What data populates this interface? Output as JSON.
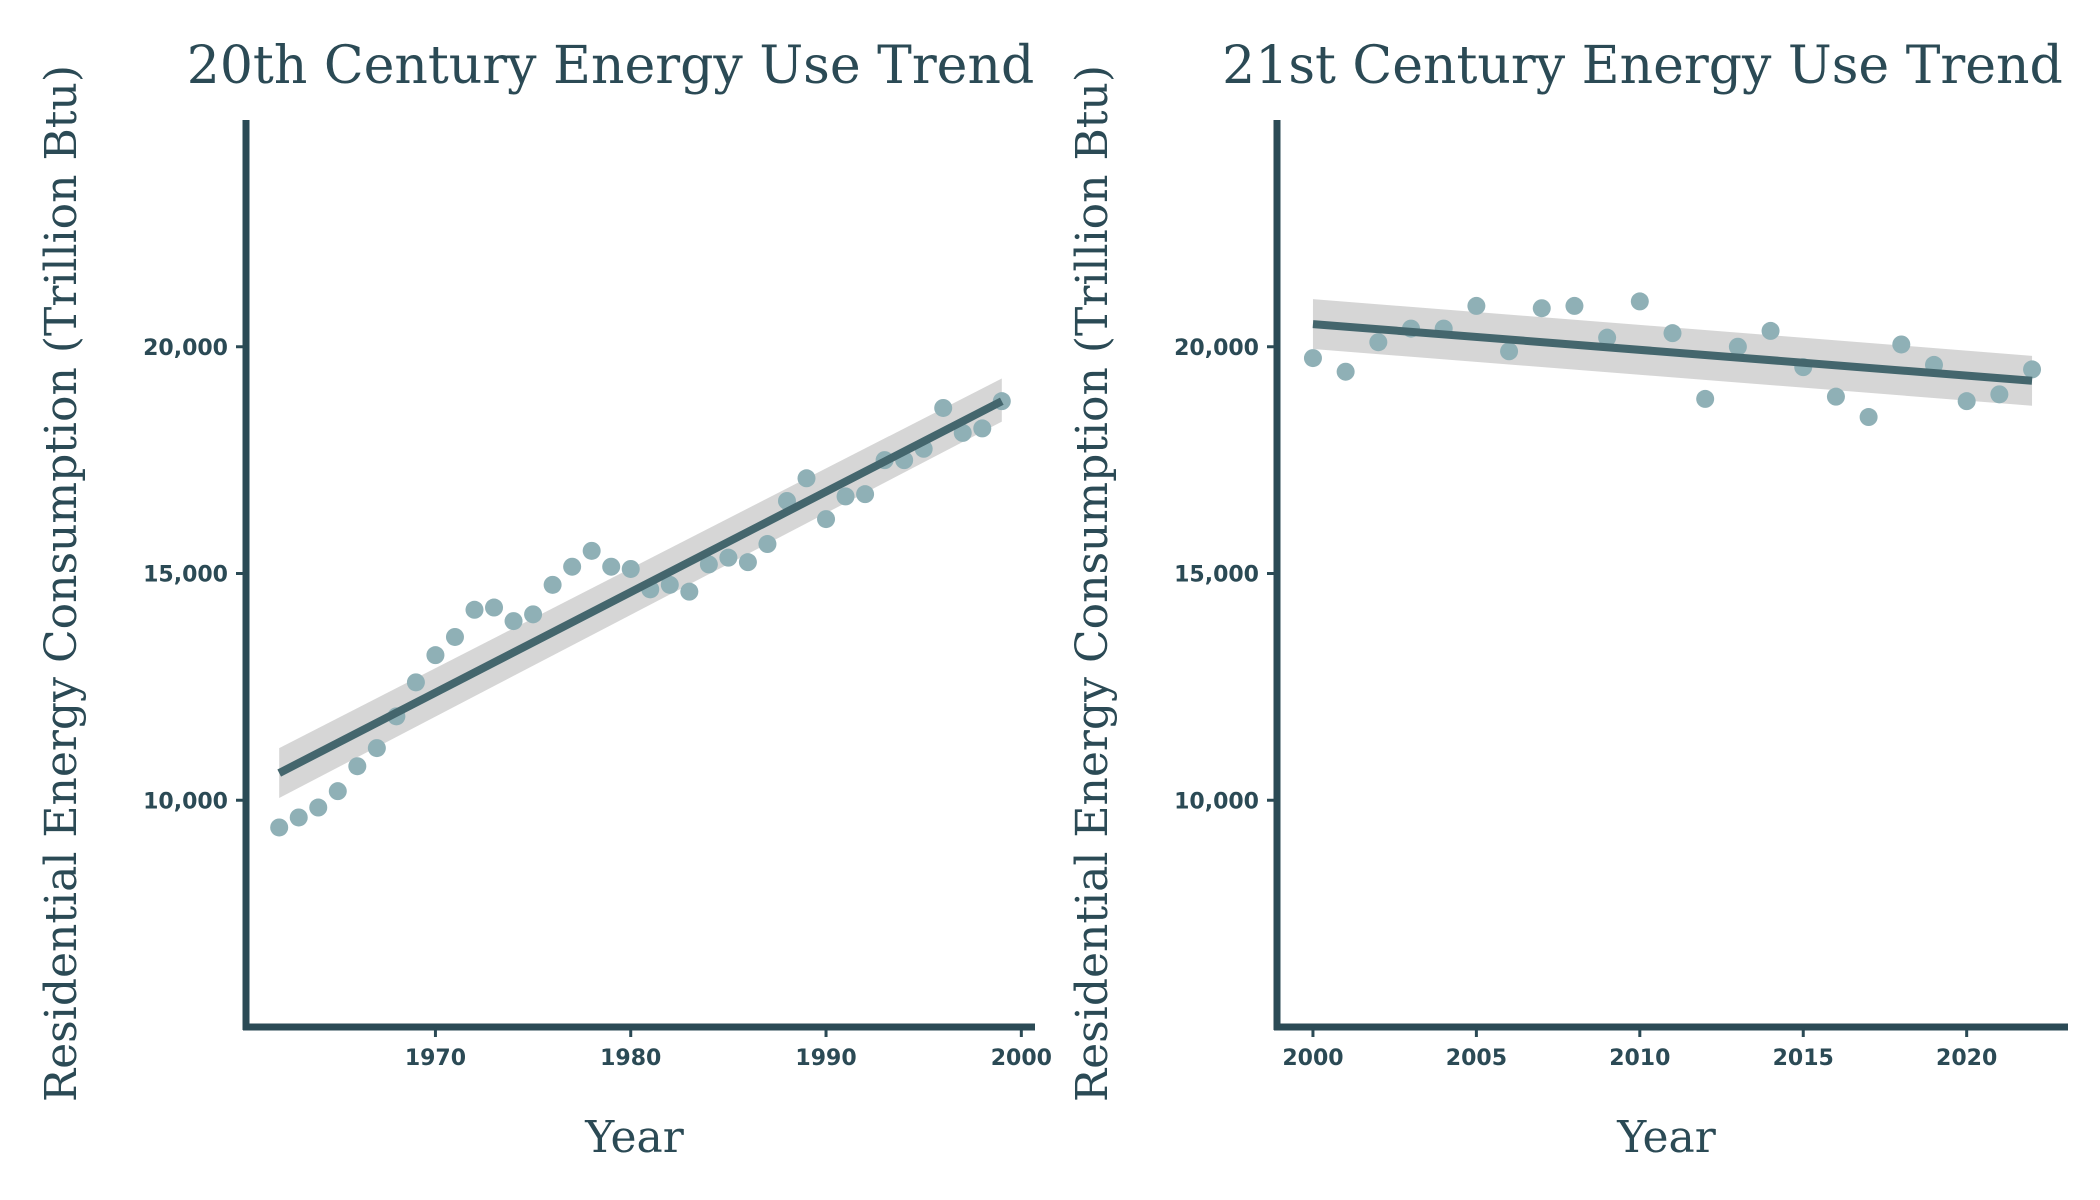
{
  "chart_data": [
    {
      "type": "scatter",
      "title": "20th Century Energy Use Trend",
      "xlabel": "Year",
      "ylabel": "Residential Energy Consumption (Trillion Btu)",
      "xlim": [
        1960.3,
        2000.7
      ],
      "ylim": [
        5000,
        25000
      ],
      "xticks": [
        1970,
        1980,
        1990,
        2000
      ],
      "xtick_labels": [
        "1970",
        "1980",
        "1990",
        "2000"
      ],
      "yticks": [
        10000,
        15000,
        20000
      ],
      "ytick_labels": [
        "10,000",
        "15,000",
        "20,000"
      ],
      "grid": false,
      "points": [
        {
          "x": 1962,
          "y": 9400
        },
        {
          "x": 1963,
          "y": 9620
        },
        {
          "x": 1964,
          "y": 9840
        },
        {
          "x": 1965,
          "y": 10200
        },
        {
          "x": 1966,
          "y": 10750
        },
        {
          "x": 1967,
          "y": 11150
        },
        {
          "x": 1968,
          "y": 11850
        },
        {
          "x": 1969,
          "y": 12600
        },
        {
          "x": 1970,
          "y": 13200
        },
        {
          "x": 1971,
          "y": 13600
        },
        {
          "x": 1972,
          "y": 14200
        },
        {
          "x": 1973,
          "y": 14250
        },
        {
          "x": 1974,
          "y": 13950
        },
        {
          "x": 1975,
          "y": 14100
        },
        {
          "x": 1976,
          "y": 14750
        },
        {
          "x": 1977,
          "y": 15150
        },
        {
          "x": 1978,
          "y": 15500
        },
        {
          "x": 1979,
          "y": 15150
        },
        {
          "x": 1980,
          "y": 15100
        },
        {
          "x": 1981,
          "y": 14650
        },
        {
          "x": 1982,
          "y": 14750
        },
        {
          "x": 1983,
          "y": 14600
        },
        {
          "x": 1984,
          "y": 15200
        },
        {
          "x": 1985,
          "y": 15350
        },
        {
          "x": 1986,
          "y": 15250
        },
        {
          "x": 1987,
          "y": 15650
        },
        {
          "x": 1988,
          "y": 16600
        },
        {
          "x": 1989,
          "y": 17100
        },
        {
          "x": 1990,
          "y": 16200
        },
        {
          "x": 1991,
          "y": 16700
        },
        {
          "x": 1992,
          "y": 16750
        },
        {
          "x": 1993,
          "y": 17500
        },
        {
          "x": 1994,
          "y": 17500
        },
        {
          "x": 1995,
          "y": 17750
        },
        {
          "x": 1996,
          "y": 18650
        },
        {
          "x": 1997,
          "y": 18100
        },
        {
          "x": 1998,
          "y": 18200
        },
        {
          "x": 1999,
          "y": 18800
        }
      ],
      "trendline": {
        "x": [
          1962,
          1999
        ],
        "y": [
          10600,
          18800
        ],
        "ci_lower": [
          10050,
          18350
        ],
        "ci_upper": [
          11150,
          19300
        ]
      }
    },
    {
      "type": "scatter",
      "title": "21st Century Energy Use Trend",
      "xlabel": "Year",
      "ylabel": "Residential Energy Consumption (Trillion Btu)",
      "xlim": [
        1998.9,
        2023.1
      ],
      "ylim": [
        5000,
        25000
      ],
      "xticks": [
        2000,
        2005,
        2010,
        2015,
        2020
      ],
      "xtick_labels": [
        "2000",
        "2005",
        "2010",
        "2015",
        "2020"
      ],
      "yticks": [
        10000,
        15000,
        20000
      ],
      "ytick_labels": [
        "10,000",
        "15,000",
        "20,000"
      ],
      "grid": false,
      "points": [
        {
          "x": 2000,
          "y": 19750
        },
        {
          "x": 2001,
          "y": 19450
        },
        {
          "x": 2002,
          "y": 20100
        },
        {
          "x": 2003,
          "y": 20400
        },
        {
          "x": 2004,
          "y": 20400
        },
        {
          "x": 2005,
          "y": 20900
        },
        {
          "x": 2006,
          "y": 19900
        },
        {
          "x": 2007,
          "y": 20850
        },
        {
          "x": 2008,
          "y": 20900
        },
        {
          "x": 2009,
          "y": 20200
        },
        {
          "x": 2010,
          "y": 21000
        },
        {
          "x": 2011,
          "y": 20300
        },
        {
          "x": 2012,
          "y": 18850
        },
        {
          "x": 2013,
          "y": 20000
        },
        {
          "x": 2014,
          "y": 20350
        },
        {
          "x": 2015,
          "y": 19550
        },
        {
          "x": 2016,
          "y": 18900
        },
        {
          "x": 2017,
          "y": 18450
        },
        {
          "x": 2018,
          "y": 20050
        },
        {
          "x": 2019,
          "y": 19600
        },
        {
          "x": 2020,
          "y": 18800
        },
        {
          "x": 2021,
          "y": 18950
        },
        {
          "x": 2022,
          "y": 19500
        }
      ],
      "trendline": {
        "x": [
          2000,
          2022
        ],
        "y": [
          20500,
          19250
        ],
        "ci_lower": [
          19950,
          18700
        ],
        "ci_upper": [
          21050,
          19800
        ]
      }
    }
  ]
}
